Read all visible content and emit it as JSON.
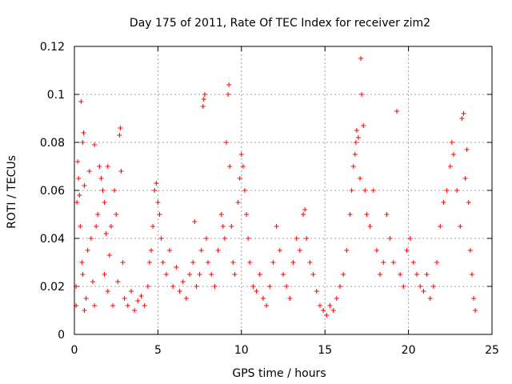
{
  "chart_data": {
    "type": "scatter",
    "title": "Day 175 of 2011, Rate Of TEC Index for receiver zim2",
    "xlabel": "GPS time / hours",
    "ylabel": "ROTI / TECUs",
    "xlim": [
      0,
      25
    ],
    "ylim": [
      0,
      0.12
    ],
    "x_ticks": [
      0,
      5,
      10,
      15,
      20,
      25
    ],
    "x_tick_labels": [
      "0",
      "5",
      "10",
      "15",
      "20",
      "25"
    ],
    "y_ticks": [
      0,
      0.02,
      0.04,
      0.06,
      0.08,
      0.1,
      0.12
    ],
    "y_tick_labels": [
      "0",
      "0.02",
      "0.04",
      "0.06",
      "0.08",
      "0.1",
      "0.12"
    ],
    "grid": true,
    "marker": "+",
    "color": "#ff0000",
    "series": [
      {
        "name": "ROTI",
        "points": [
          [
            0.1,
            0.012
          ],
          [
            0.1,
            0.02
          ],
          [
            0.15,
            0.055
          ],
          [
            0.2,
            0.072
          ],
          [
            0.25,
            0.065
          ],
          [
            0.3,
            0.058
          ],
          [
            0.35,
            0.045
          ],
          [
            0.4,
            0.097
          ],
          [
            0.45,
            0.03
          ],
          [
            0.5,
            0.025
          ],
          [
            0.5,
            0.08
          ],
          [
            0.55,
            0.084
          ],
          [
            0.6,
            0.062
          ],
          [
            0.6,
            0.01
          ],
          [
            0.7,
            0.015
          ],
          [
            0.8,
            0.035
          ],
          [
            0.9,
            0.068
          ],
          [
            1.0,
            0.04
          ],
          [
            1.1,
            0.022
          ],
          [
            1.2,
            0.079
          ],
          [
            1.2,
            0.012
          ],
          [
            1.3,
            0.045
          ],
          [
            1.4,
            0.05
          ],
          [
            1.5,
            0.07
          ],
          [
            1.6,
            0.065
          ],
          [
            1.7,
            0.06
          ],
          [
            1.8,
            0.055
          ],
          [
            1.8,
            0.025
          ],
          [
            1.9,
            0.042
          ],
          [
            2.0,
            0.07
          ],
          [
            2.0,
            0.018
          ],
          [
            2.1,
            0.033
          ],
          [
            2.2,
            0.045
          ],
          [
            2.3,
            0.012
          ],
          [
            2.4,
            0.06
          ],
          [
            2.5,
            0.05
          ],
          [
            2.6,
            0.022
          ],
          [
            2.7,
            0.083
          ],
          [
            2.75,
            0.086
          ],
          [
            2.8,
            0.068
          ],
          [
            2.9,
            0.03
          ],
          [
            3.0,
            0.015
          ],
          [
            3.2,
            0.012
          ],
          [
            3.4,
            0.018
          ],
          [
            3.6,
            0.01
          ],
          [
            3.8,
            0.014
          ],
          [
            4.0,
            0.016
          ],
          [
            4.2,
            0.012
          ],
          [
            4.4,
            0.02
          ],
          [
            4.5,
            0.03
          ],
          [
            4.6,
            0.035
          ],
          [
            4.7,
            0.045
          ],
          [
            4.8,
            0.06
          ],
          [
            4.9,
            0.063
          ],
          [
            5.0,
            0.055
          ],
          [
            5.1,
            0.05
          ],
          [
            5.2,
            0.04
          ],
          [
            5.3,
            0.03
          ],
          [
            5.5,
            0.025
          ],
          [
            5.7,
            0.035
          ],
          [
            5.9,
            0.02
          ],
          [
            6.1,
            0.028
          ],
          [
            6.3,
            0.018
          ],
          [
            6.5,
            0.022
          ],
          [
            6.7,
            0.015
          ],
          [
            6.9,
            0.025
          ],
          [
            7.1,
            0.03
          ],
          [
            7.2,
            0.047
          ],
          [
            7.3,
            0.02
          ],
          [
            7.5,
            0.025
          ],
          [
            7.6,
            0.035
          ],
          [
            7.7,
            0.095
          ],
          [
            7.75,
            0.098
          ],
          [
            7.8,
            0.1
          ],
          [
            7.9,
            0.04
          ],
          [
            8.0,
            0.03
          ],
          [
            8.2,
            0.025
          ],
          [
            8.4,
            0.02
          ],
          [
            8.6,
            0.035
          ],
          [
            8.8,
            0.05
          ],
          [
            8.9,
            0.045
          ],
          [
            9.0,
            0.04
          ],
          [
            9.1,
            0.08
          ],
          [
            9.2,
            0.1
          ],
          [
            9.25,
            0.104
          ],
          [
            9.3,
            0.07
          ],
          [
            9.4,
            0.045
          ],
          [
            9.5,
            0.03
          ],
          [
            9.6,
            0.025
          ],
          [
            9.8,
            0.055
          ],
          [
            9.9,
            0.065
          ],
          [
            10.0,
            0.075
          ],
          [
            10.1,
            0.07
          ],
          [
            10.2,
            0.06
          ],
          [
            10.3,
            0.05
          ],
          [
            10.4,
            0.04
          ],
          [
            10.5,
            0.03
          ],
          [
            10.7,
            0.02
          ],
          [
            10.9,
            0.018
          ],
          [
            11.1,
            0.025
          ],
          [
            11.3,
            0.015
          ],
          [
            11.5,
            0.012
          ],
          [
            11.7,
            0.02
          ],
          [
            11.9,
            0.03
          ],
          [
            12.1,
            0.045
          ],
          [
            12.3,
            0.035
          ],
          [
            12.5,
            0.025
          ],
          [
            12.7,
            0.02
          ],
          [
            12.9,
            0.015
          ],
          [
            13.1,
            0.03
          ],
          [
            13.3,
            0.04
          ],
          [
            13.5,
            0.035
          ],
          [
            13.7,
            0.05
          ],
          [
            13.8,
            0.052
          ],
          [
            13.9,
            0.04
          ],
          [
            14.1,
            0.03
          ],
          [
            14.3,
            0.025
          ],
          [
            14.5,
            0.018
          ],
          [
            14.7,
            0.012
          ],
          [
            14.9,
            0.01
          ],
          [
            15.1,
            0.008
          ],
          [
            15.3,
            0.012
          ],
          [
            15.5,
            0.01
          ],
          [
            15.7,
            0.015
          ],
          [
            15.9,
            0.02
          ],
          [
            16.1,
            0.025
          ],
          [
            16.3,
            0.035
          ],
          [
            16.5,
            0.05
          ],
          [
            16.6,
            0.06
          ],
          [
            16.7,
            0.07
          ],
          [
            16.8,
            0.075
          ],
          [
            16.85,
            0.08
          ],
          [
            16.9,
            0.085
          ],
          [
            17.0,
            0.082
          ],
          [
            17.1,
            0.065
          ],
          [
            17.15,
            0.115
          ],
          [
            17.2,
            0.1
          ],
          [
            17.3,
            0.087
          ],
          [
            17.4,
            0.06
          ],
          [
            17.5,
            0.05
          ],
          [
            17.7,
            0.045
          ],
          [
            17.9,
            0.06
          ],
          [
            18.1,
            0.035
          ],
          [
            18.3,
            0.025
          ],
          [
            18.5,
            0.03
          ],
          [
            18.7,
            0.05
          ],
          [
            18.9,
            0.04
          ],
          [
            19.1,
            0.03
          ],
          [
            19.3,
            0.093
          ],
          [
            19.5,
            0.025
          ],
          [
            19.7,
            0.02
          ],
          [
            19.9,
            0.035
          ],
          [
            20.1,
            0.04
          ],
          [
            20.3,
            0.03
          ],
          [
            20.5,
            0.025
          ],
          [
            20.7,
            0.02
          ],
          [
            20.9,
            0.018
          ],
          [
            21.1,
            0.025
          ],
          [
            21.3,
            0.015
          ],
          [
            21.5,
            0.02
          ],
          [
            21.7,
            0.03
          ],
          [
            21.9,
            0.045
          ],
          [
            22.1,
            0.055
          ],
          [
            22.3,
            0.06
          ],
          [
            22.5,
            0.07
          ],
          [
            22.6,
            0.08
          ],
          [
            22.7,
            0.075
          ],
          [
            22.9,
            0.06
          ],
          [
            23.1,
            0.045
          ],
          [
            23.2,
            0.09
          ],
          [
            23.3,
            0.092
          ],
          [
            23.4,
            0.065
          ],
          [
            23.5,
            0.077
          ],
          [
            23.6,
            0.055
          ],
          [
            23.7,
            0.035
          ],
          [
            23.8,
            0.025
          ],
          [
            23.9,
            0.015
          ],
          [
            24.0,
            0.01
          ]
        ]
      }
    ]
  }
}
